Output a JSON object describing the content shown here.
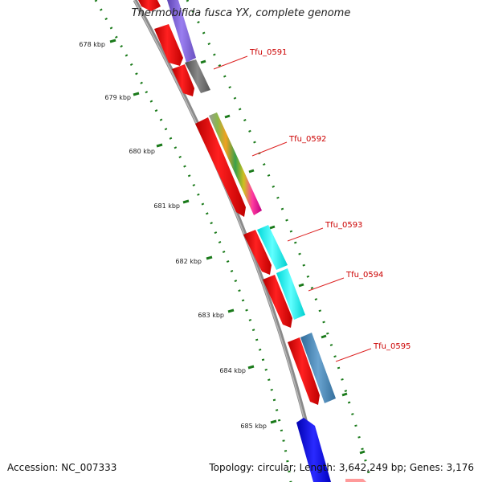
{
  "title": "Thermobifida fusca YX, complete genome",
  "footer": {
    "accession": "Accession: NC_007333",
    "summary": "Topology: circular; Length: 3,642,249 bp; Genes: 3,176"
  },
  "ticks": [
    "678 kbp",
    "679 kbp",
    "680 kbp",
    "681 kbp",
    "682 kbp",
    "683 kbp",
    "684 kbp",
    "685 kbp"
  ],
  "gene_labels": [
    "Tfu_0591",
    "Tfu_0592",
    "Tfu_0593",
    "Tfu_0594",
    "Tfu_0595"
  ],
  "colors": {
    "cds": "#ff0000",
    "backbone": "#888888",
    "tick": "#1a7a1a",
    "label": "#cc0000",
    "purple": "#8a6ad8",
    "gray": "#6e6e6e",
    "cyan": "#00f2f2",
    "steel": "#4a88b8",
    "blue": "#1010e0"
  }
}
